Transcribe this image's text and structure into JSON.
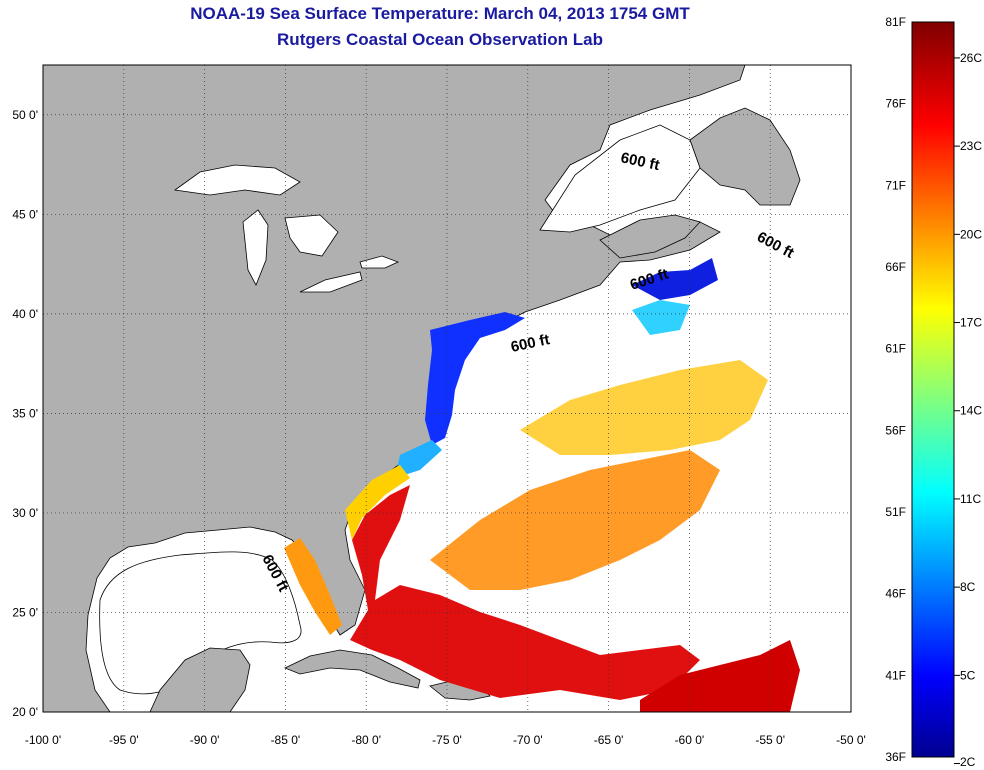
{
  "title": "NOAA-19 Sea Surface Temperature:  March 04, 2013 1754 GMT",
  "subtitle": "Rutgers Coastal Ocean Observation Lab",
  "map": {
    "lon_ticks": [
      "-100 0'",
      "-95 0'",
      "-90 0'",
      "-85 0'",
      "-80 0'",
      "-75 0'",
      "-70 0'",
      "-65 0'",
      "-60 0'",
      "-55 0'",
      "-50 0'"
    ],
    "lon_values": [
      -100,
      -95,
      -90,
      -85,
      -80,
      -75,
      -70,
      -65,
      -60,
      -55,
      -50
    ],
    "lat_ticks": [
      "20 0'",
      "25 0'",
      "30 0'",
      "35 0'",
      "40 0'",
      "45 0'",
      "50 0'"
    ],
    "lat_values": [
      20,
      25,
      30,
      35,
      40,
      45,
      50
    ],
    "lon_range": [
      -100,
      -50
    ],
    "lat_range": [
      20,
      52.5
    ],
    "grid": "dotted",
    "land_color": "#b0b0b0",
    "ocean_color": "#ffffff",
    "isobath_labels": [
      "600 ft",
      "600 ft",
      "600 ft",
      "600 ft",
      "600 ft"
    ]
  },
  "colorbar": {
    "f_labels": [
      "81F",
      "76F",
      "71F",
      "66F",
      "61F",
      "56F",
      "51F",
      "46F",
      "41F",
      "36F"
    ],
    "c_labels": [
      "26C",
      "23C",
      "20C",
      "17C",
      "14C",
      "11C",
      "8C",
      "5C",
      "2C"
    ],
    "colormap": "jet",
    "range_f": [
      36,
      81
    ]
  }
}
